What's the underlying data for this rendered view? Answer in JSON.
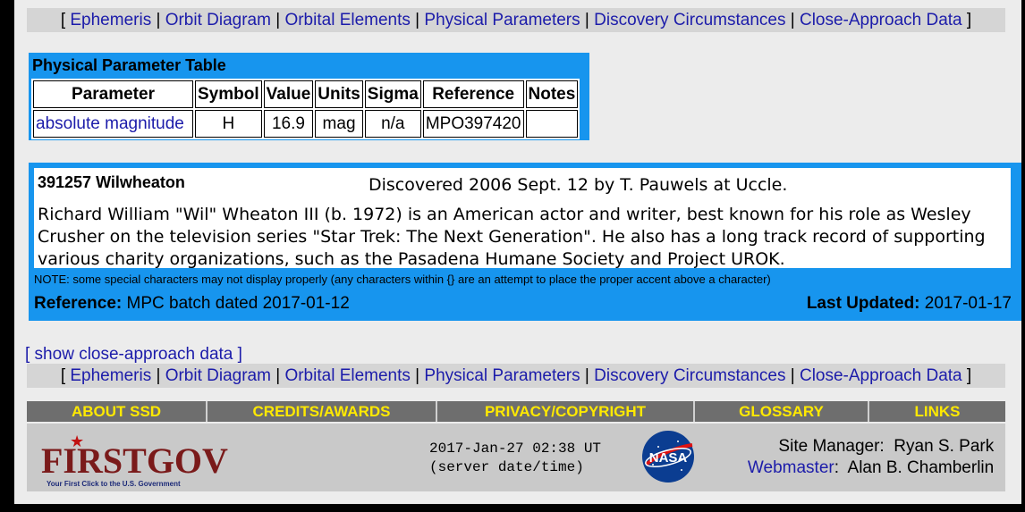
{
  "nav": {
    "items": [
      "Ephemeris",
      "Orbit Diagram",
      "Orbital Elements",
      "Physical Parameters",
      "Discovery Circumstances",
      "Close-Approach Data"
    ]
  },
  "physical": {
    "title": "Physical Parameter Table",
    "headers": [
      "Parameter",
      "Symbol",
      "Value",
      "Units",
      "Sigma",
      "Reference",
      "Notes"
    ],
    "row": [
      "absolute magnitude",
      "H",
      "16.9",
      "mag",
      "n/a",
      "MPO397420",
      ""
    ]
  },
  "discovery": {
    "name": "391257 Wilwheaton",
    "circumstances": "Discovered 2006 Sept. 12 by T. Pauwels at Uccle.",
    "text": "Richard William \"Wil\" Wheaton III (b. 1972) is an American actor and writer, best known for his role as Wesley Crusher on the television series \"Star Trek: The Next Generation\". He also has a long track record of supporting various charity organizations, such as the Pasadena Humane Society and Project UROK.",
    "note": "NOTE: some special characters may not display properly (any characters within {} are an attempt to place the proper accent above a character)",
    "reference_label": "Reference:",
    "reference_value": "MPC batch dated 2017-01-12",
    "updated_label": "Last Updated:",
    "updated_value": "2017-01-17"
  },
  "show_close_approach": "[ show close-approach data ]",
  "footer_bar": [
    "ABOUT SSD",
    "CREDITS/AWARDS",
    "PRIVACY/COPYRIGHT",
    "GLOSSARY",
    "LINKS"
  ],
  "footer": {
    "firstgov_logo": "FIRSTGOV",
    "firstgov_sub": "Your First Click to the U.S. Government",
    "server_time": "2017-Jan-27 02:38 UT",
    "server_time_label": "(server date/time)",
    "nasa_logo": "NASA",
    "site_manager_label": "Site Manager:",
    "site_manager": "Ryan S. Park",
    "webmaster_label": "Webmaster",
    "webmaster": "Alan B. Chamberlin"
  },
  "colors": {
    "accent": "#1795ee",
    "link": "#1c1caa",
    "footer_bar_text": "#ffe900"
  }
}
